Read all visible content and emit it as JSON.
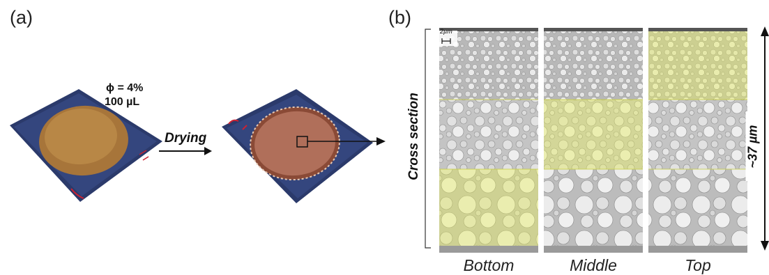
{
  "panels": {
    "a": {
      "label": "(a)",
      "annotation_phi": "ϕ = 4%",
      "annotation_volume": "100 µL",
      "arrow_label": "Drying"
    },
    "b": {
      "label": "(b)",
      "side_label": "Cross section",
      "scale_bar": "2µm",
      "height_label": "~37 µm",
      "columns": [
        "Bottom",
        "Middle",
        "Top"
      ],
      "highlight_color": "#e8ef5a"
    }
  }
}
